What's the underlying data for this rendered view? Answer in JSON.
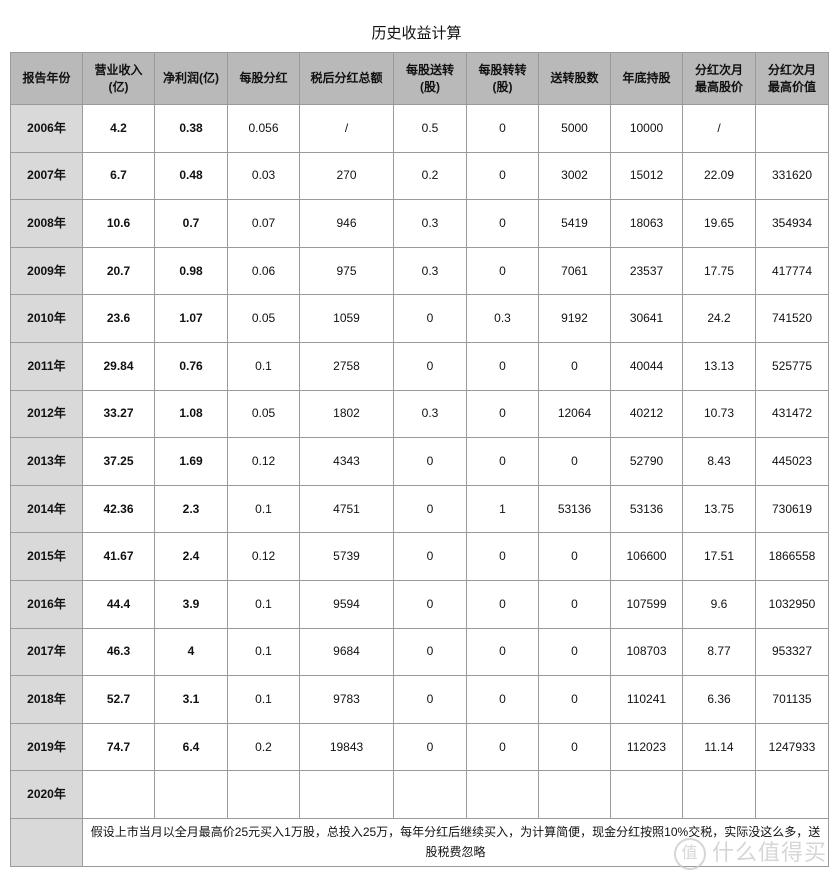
{
  "title": "历史收益计算",
  "headers": [
    "报告年份",
    "营业收入\n(亿)",
    "净利润(亿)",
    "每股分红",
    "税后分红总额",
    "每股送转\n(股)",
    "每股转转\n(股)",
    "送转股数",
    "年底持股",
    "分红次月\n最高股价",
    "分红次月\n最高价值"
  ],
  "rows": [
    [
      "2006年",
      "4.2",
      "0.38",
      "0.056",
      "/",
      "0.5",
      "0",
      "5000",
      "10000",
      "/",
      ""
    ],
    [
      "2007年",
      "6.7",
      "0.48",
      "0.03",
      "270",
      "0.2",
      "0",
      "3002",
      "15012",
      "22.09",
      "331620"
    ],
    [
      "2008年",
      "10.6",
      "0.7",
      "0.07",
      "946",
      "0.3",
      "0",
      "5419",
      "18063",
      "19.65",
      "354934"
    ],
    [
      "2009年",
      "20.7",
      "0.98",
      "0.06",
      "975",
      "0.3",
      "0",
      "7061",
      "23537",
      "17.75",
      "417774"
    ],
    [
      "2010年",
      "23.6",
      "1.07",
      "0.05",
      "1059",
      "0",
      "0.3",
      "9192",
      "30641",
      "24.2",
      "741520"
    ],
    [
      "2011年",
      "29.84",
      "0.76",
      "0.1",
      "2758",
      "0",
      "0",
      "0",
      "40044",
      "13.13",
      "525775"
    ],
    [
      "2012年",
      "33.27",
      "1.08",
      "0.05",
      "1802",
      "0.3",
      "0",
      "12064",
      "40212",
      "10.73",
      "431472"
    ],
    [
      "2013年",
      "37.25",
      "1.69",
      "0.12",
      "4343",
      "0",
      "0",
      "0",
      "52790",
      "8.43",
      "445023"
    ],
    [
      "2014年",
      "42.36",
      "2.3",
      "0.1",
      "4751",
      "0",
      "1",
      "53136",
      "53136",
      "13.75",
      "730619"
    ],
    [
      "2015年",
      "41.67",
      "2.4",
      "0.12",
      "5739",
      "0",
      "0",
      "0",
      "106600",
      "17.51",
      "1866558"
    ],
    [
      "2016年",
      "44.4",
      "3.9",
      "0.1",
      "9594",
      "0",
      "0",
      "0",
      "107599",
      "9.6",
      "1032950"
    ],
    [
      "2017年",
      "46.3",
      "4",
      "0.1",
      "9684",
      "0",
      "0",
      "0",
      "108703",
      "8.77",
      "953327"
    ],
    [
      "2018年",
      "52.7",
      "3.1",
      "0.1",
      "9783",
      "0",
      "0",
      "0",
      "110241",
      "6.36",
      "701135"
    ],
    [
      "2019年",
      "74.7",
      "6.4",
      "0.2",
      "19843",
      "0",
      "0",
      "0",
      "112023",
      "11.14",
      "1247933"
    ],
    [
      "2020年",
      "",
      "",
      "",
      "",
      "",
      "",
      "",
      "",
      "",
      ""
    ]
  ],
  "note": "假设上市当月以全月最高价25元买入1万股，总投入25万，每年分红后继续买入，为计算简便，现金分红按照10%交税，实际没这么多，送股税费忽略",
  "watermark": "值 什么值得买",
  "colors": {
    "header_bg": "#b9b9b9",
    "year_bg": "#d9d9d9",
    "border": "#9a9a9a"
  }
}
